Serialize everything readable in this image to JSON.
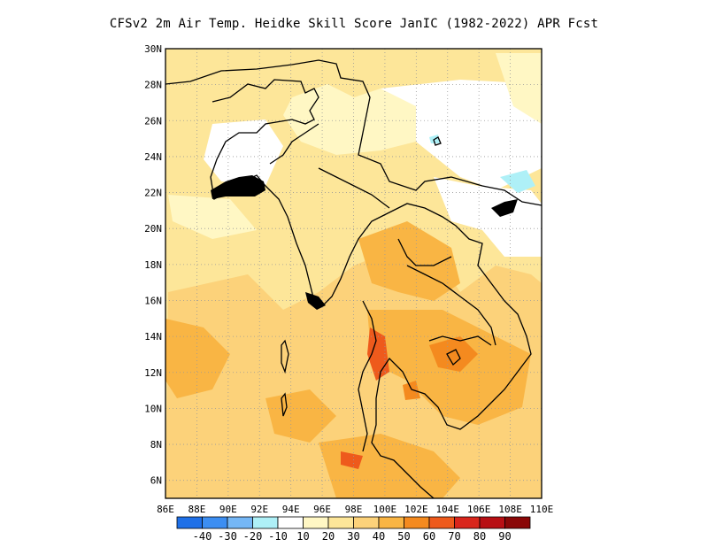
{
  "title": "CFSv2  2m Air Temp. Heidke Skill Score JanIC (1982-2022) APR Fcst",
  "map": {
    "lon_range": [
      86,
      110
    ],
    "lat_range": [
      5,
      30
    ],
    "lat_ticks": [
      "6N",
      "8N",
      "10N",
      "12N",
      "14N",
      "16N",
      "18N",
      "20N",
      "22N",
      "24N",
      "26N",
      "28N",
      "30N"
    ],
    "lon_ticks": [
      "86E",
      "88E",
      "90E",
      "92E",
      "94E",
      "96E",
      "98E",
      "100E",
      "102E",
      "104E",
      "106E",
      "108E",
      "110E"
    ],
    "gridlines": "dotted",
    "fill_colors": {
      "white": "#ffffff",
      "c10": "#fff7c4",
      "c20": "#fde699",
      "c30": "#fcd27a",
      "c40": "#f9b544",
      "c50": "#f48a1f",
      "c60": "#ee5a1c",
      "neg10": "#aef0f7",
      "coast": "#000000"
    }
  },
  "colorbar": {
    "labels": [
      "-40",
      "-30",
      "-20",
      "-10",
      "10",
      "20",
      "30",
      "40",
      "50",
      "60",
      "70",
      "80",
      "90"
    ],
    "colors": [
      "#1f70e8",
      "#3c8ef2",
      "#75b7f6",
      "#aef0f7",
      "#ffffff",
      "#fff7c4",
      "#fde699",
      "#fcd27a",
      "#f9b544",
      "#f48a1f",
      "#ee5a1c",
      "#d9261c",
      "#b80f14",
      "#8a0707"
    ]
  }
}
